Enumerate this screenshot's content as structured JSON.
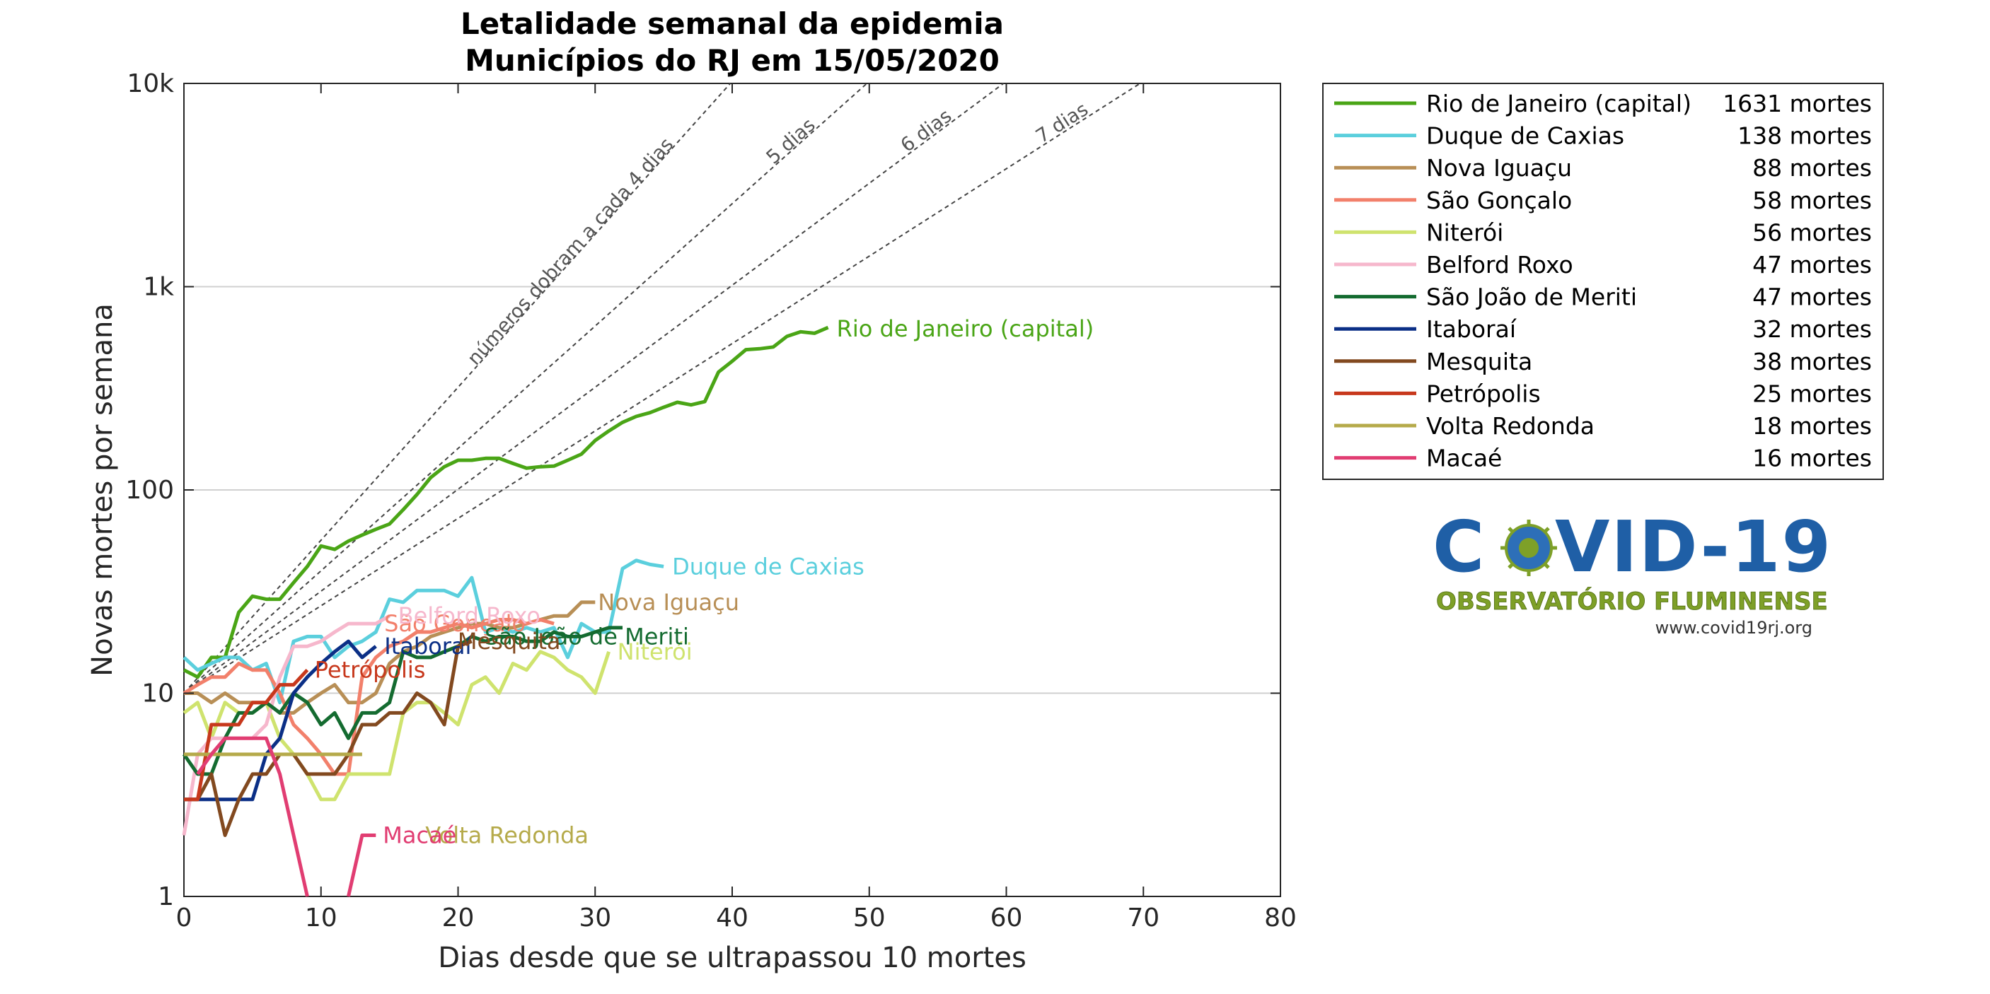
{
  "chart_data": {
    "type": "line",
    "title_lines": [
      "Letalidade semanal da epidemia",
      "Municípios do RJ em 15/05/2020"
    ],
    "xlabel": "Dias desde que se ultrapassou 10 mortes",
    "ylabel": "Novas mortes por semana",
    "xlim": [
      0,
      80
    ],
    "ylim": [
      1,
      10000
    ],
    "yscale": "log",
    "x_ticks": [
      0,
      10,
      20,
      30,
      40,
      50,
      60,
      70,
      80
    ],
    "x_tick_labels": [
      "0",
      "10",
      "20",
      "30",
      "40",
      "50",
      "60",
      "70",
      "80"
    ],
    "y_ticks": [
      1,
      10,
      100,
      1000,
      10000
    ],
    "y_tick_labels": [
      "1",
      "10",
      "100",
      "1k",
      "10k"
    ],
    "grid": "horizontal",
    "legend_position": "outside-right-top",
    "guide_lines": [
      {
        "label": "números dobram a cada 4 dias",
        "doubling_days": 4,
        "start": 10
      },
      {
        "label": "5 dias",
        "doubling_days": 5,
        "start": 10
      },
      {
        "label": "6 dias",
        "doubling_days": 6,
        "start": 10
      },
      {
        "label": "7 dias",
        "doubling_days": 7,
        "start": 10
      }
    ],
    "series": [
      {
        "name": "Rio de Janeiro (capital)",
        "deaths": "1631 mortes",
        "color": "#4aa516",
        "label": "Rio de Janeiro (capital)",
        "x": [
          0,
          1,
          2,
          3,
          4,
          5,
          6,
          7,
          8,
          9,
          10,
          11,
          12,
          13,
          14,
          15,
          16,
          17,
          18,
          19,
          20,
          21,
          22,
          23,
          24,
          25,
          26,
          27,
          28,
          29,
          30,
          31,
          32,
          33,
          34,
          35,
          36,
          37,
          38,
          39,
          40,
          41,
          42,
          43,
          44,
          45,
          46,
          47
        ],
        "y": [
          13,
          12,
          15,
          15,
          25,
          30,
          29,
          29,
          35,
          42,
          53,
          51,
          56,
          60,
          64,
          68,
          80,
          95,
          115,
          130,
          140,
          140,
          143,
          143,
          135,
          128,
          130,
          131,
          140,
          150,
          175,
          195,
          215,
          230,
          240,
          255,
          270,
          262,
          272,
          380,
          430,
          490,
          495,
          505,
          570,
          600,
          590,
          630
        ]
      },
      {
        "name": "Duque de Caxias",
        "deaths": "138 mortes",
        "color": "#5bcfdd",
        "label": "Duque de Caxias",
        "x": [
          0,
          1,
          2,
          3,
          4,
          5,
          6,
          7,
          8,
          9,
          10,
          11,
          12,
          13,
          14,
          15,
          16,
          17,
          18,
          19,
          20,
          21,
          22,
          23,
          24,
          25,
          26,
          27,
          28,
          29,
          30,
          31,
          32,
          33,
          34,
          35
        ],
        "y": [
          15,
          13,
          14,
          15,
          15,
          13,
          14,
          9,
          18,
          19,
          19,
          15,
          17,
          18,
          20,
          29,
          28,
          32,
          32,
          32,
          30,
          37,
          20,
          21,
          20,
          21,
          20,
          21,
          15,
          22,
          20,
          20,
          41,
          45,
          43,
          42
        ]
      },
      {
        "name": "Nova Iguaçu",
        "deaths": "88 mortes",
        "color": "#b88f56",
        "label": "Nova Iguaçu",
        "x": [
          0,
          1,
          2,
          3,
          4,
          5,
          6,
          7,
          8,
          9,
          10,
          11,
          12,
          13,
          14,
          15,
          16,
          17,
          18,
          19,
          20,
          21,
          22,
          23,
          24,
          25,
          26,
          27,
          28,
          29,
          30
        ],
        "y": [
          10,
          10,
          9,
          10,
          9,
          9,
          9,
          8,
          8,
          9,
          10,
          11,
          9,
          9,
          10,
          14,
          16,
          17,
          19,
          20,
          21,
          22,
          22,
          21,
          21,
          22,
          23,
          24,
          24,
          28,
          28
        ]
      },
      {
        "name": "São Gonçalo",
        "deaths": "58 mortes",
        "color": "#f2806b",
        "label": "São Gonçalo",
        "x": [
          0,
          1,
          2,
          3,
          4,
          5,
          6,
          7,
          8,
          9,
          10,
          11,
          12,
          13,
          14,
          15,
          16,
          17,
          18,
          19,
          20,
          21,
          22,
          23,
          24,
          25,
          26,
          27
        ],
        "y": [
          10,
          11,
          12,
          12,
          14,
          13,
          13,
          10,
          7,
          6,
          5,
          4,
          4,
          12,
          15,
          17,
          18,
          20,
          20,
          21,
          22,
          21,
          22,
          23,
          23,
          22,
          23,
          22
        ]
      },
      {
        "name": "Niterói",
        "deaths": "56 mortes",
        "color": "#cfe36e",
        "label": "Niterói",
        "x": [
          0,
          1,
          2,
          3,
          4,
          5,
          6,
          7,
          8,
          9,
          10,
          11,
          12,
          13,
          14,
          15,
          16,
          17,
          18,
          19,
          20,
          21,
          22,
          23,
          24,
          25,
          26,
          27,
          28,
          29,
          30,
          31
        ],
        "y": [
          8,
          9,
          6,
          9,
          8,
          8,
          9,
          6,
          5,
          4,
          3,
          3,
          4,
          4,
          4,
          4,
          8,
          9,
          9,
          8,
          7,
          11,
          12,
          10,
          14,
          13,
          16,
          15,
          13,
          12,
          10,
          16
        ]
      },
      {
        "name": "Belford Roxo",
        "deaths": "47 mortes",
        "color": "#f6b7cc",
        "label": "Belford Roxo",
        "x": [
          0,
          1,
          2,
          3,
          4,
          5,
          6,
          7,
          8,
          9,
          10,
          11,
          12,
          13,
          14,
          15
        ],
        "y": [
          2,
          5,
          6,
          6,
          6,
          6,
          7,
          12,
          17,
          17,
          18,
          20,
          22,
          22,
          22,
          24
        ]
      },
      {
        "name": "São João de Meriti",
        "deaths": "47 mortes",
        "color": "#146b30",
        "label": "São João de Meriti",
        "x": [
          0,
          1,
          2,
          3,
          4,
          5,
          6,
          7,
          8,
          9,
          10,
          11,
          12,
          13,
          14,
          15,
          16,
          17,
          18,
          19,
          20,
          21,
          22,
          23,
          24,
          25,
          26,
          27,
          28,
          29,
          30,
          31,
          32
        ],
        "y": [
          5,
          4,
          4,
          6,
          8,
          8,
          9,
          8,
          10,
          9,
          7,
          8,
          6,
          8,
          8,
          9,
          16,
          15,
          15,
          16,
          17,
          19,
          18,
          19,
          19,
          18,
          18,
          20,
          19,
          19,
          20,
          21,
          21
        ]
      },
      {
        "name": "Itaboraí",
        "deaths": "32 mortes",
        "color": "#0b2f86",
        "label": "Itaboraí",
        "x": [
          0,
          1,
          2,
          3,
          4,
          5,
          6,
          7,
          8,
          9,
          10,
          11,
          12,
          13,
          14
        ],
        "y": [
          3,
          3,
          3,
          3,
          3,
          3,
          5,
          6,
          10,
          12,
          14,
          16,
          18,
          15,
          17
        ]
      },
      {
        "name": "Mesquita",
        "deaths": "38 mortes",
        "color": "#82491f",
        "label": "Mesquita",
        "x": [
          0,
          1,
          2,
          3,
          4,
          5,
          6,
          7,
          8,
          9,
          10,
          11,
          12,
          13,
          14,
          15,
          16,
          17,
          18,
          19,
          20,
          21
        ],
        "y": [
          3,
          3,
          4,
          2,
          3,
          4,
          4,
          5,
          5,
          4,
          4,
          4,
          5,
          7,
          7,
          8,
          8,
          10,
          9,
          7,
          17,
          18
        ]
      },
      {
        "name": "Petrópolis",
        "deaths": "25 mortes",
        "color": "#c7381c",
        "label": "Petrópolis",
        "x": [
          0,
          1,
          2,
          3,
          4,
          5,
          6,
          7,
          8,
          9
        ],
        "y": [
          3,
          3,
          7,
          7,
          7,
          9,
          9,
          11,
          11,
          13
        ]
      },
      {
        "name": "Volta Redonda",
        "deaths": "18 mortes",
        "color": "#b5aa4a",
        "label": "Volta Redonda",
        "x": [
          0,
          1,
          2,
          3,
          4,
          5,
          6,
          7,
          8,
          9,
          10,
          11,
          12,
          13
        ],
        "y": [
          5,
          5,
          5,
          5,
          5,
          5,
          5,
          5,
          5,
          5,
          5,
          5,
          5,
          5
        ]
      },
      {
        "name": "Macaé",
        "deaths": "16 mortes",
        "color": "#e13d72",
        "label": "Macaé",
        "x": [
          0,
          1,
          2,
          3,
          4,
          5,
          6,
          7,
          8,
          9,
          10,
          11,
          12,
          13,
          14
        ],
        "y": [
          null,
          4,
          5,
          6,
          6,
          6,
          6,
          4,
          2,
          1,
          null,
          null,
          1,
          2,
          2
        ]
      }
    ]
  },
  "logo": {
    "text_left": "C",
    "text_right": "VID-19",
    "subtitle": "OBSERVATÓRIO FLUMINENSE",
    "url": "www.covid19rj.org"
  }
}
